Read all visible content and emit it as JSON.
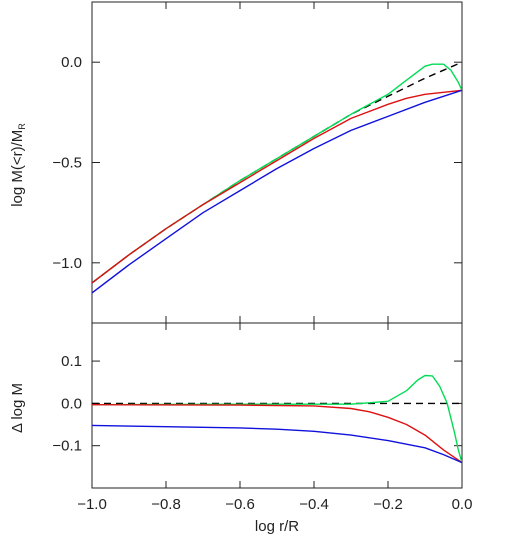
{
  "chart_data": [
    {
      "type": "line",
      "panel": "top",
      "ylabel_main": "log M(<r)/M",
      "ylabel_sub": "R",
      "xlim": [
        -1.0,
        0.0
      ],
      "ylim": [
        -1.3,
        0.3
      ],
      "yticks": [
        -1.0,
        -0.5,
        0.0
      ],
      "ytick_labels": [
        "−1.0",
        "−0.5",
        "0.0"
      ],
      "series": [
        {
          "color": "#000000",
          "dash": true,
          "x": [
            -1.0,
            -0.9,
            -0.8,
            -0.7,
            -0.6,
            -0.5,
            -0.4,
            -0.3,
            -0.2,
            -0.1,
            0.0
          ],
          "y": [
            -1.1,
            -0.96,
            -0.83,
            -0.71,
            -0.59,
            -0.48,
            -0.37,
            -0.26,
            -0.17,
            -0.08,
            0.0
          ]
        },
        {
          "color": "#00dd55",
          "dash": false,
          "x": [
            -1.0,
            -0.9,
            -0.8,
            -0.7,
            -0.6,
            -0.5,
            -0.4,
            -0.3,
            -0.2,
            -0.15,
            -0.1,
            -0.08,
            -0.05,
            -0.03,
            -0.01,
            0.0
          ],
          "y": [
            -1.1,
            -0.96,
            -0.83,
            -0.71,
            -0.59,
            -0.48,
            -0.37,
            -0.26,
            -0.16,
            -0.09,
            -0.02,
            -0.01,
            -0.01,
            -0.04,
            -0.1,
            -0.14
          ]
        },
        {
          "color": "#dd1111",
          "dash": false,
          "x": [
            -1.0,
            -0.9,
            -0.8,
            -0.7,
            -0.6,
            -0.5,
            -0.4,
            -0.3,
            -0.2,
            -0.15,
            -0.1,
            -0.05,
            0.0
          ],
          "y": [
            -1.1,
            -0.96,
            -0.83,
            -0.71,
            -0.6,
            -0.49,
            -0.38,
            -0.28,
            -0.21,
            -0.18,
            -0.16,
            -0.15,
            -0.14
          ]
        },
        {
          "color": "#1111dd",
          "dash": false,
          "x": [
            -1.0,
            -0.9,
            -0.8,
            -0.7,
            -0.6,
            -0.5,
            -0.4,
            -0.3,
            -0.2,
            -0.1,
            -0.05,
            0.0
          ],
          "y": [
            -1.15,
            -1.01,
            -0.88,
            -0.75,
            -0.64,
            -0.53,
            -0.43,
            -0.34,
            -0.27,
            -0.2,
            -0.17,
            -0.14
          ]
        }
      ]
    },
    {
      "type": "line",
      "panel": "bottom",
      "ylabel": "Δ log M",
      "xlabel": "log r/R",
      "xlim": [
        -1.0,
        0.0
      ],
      "ylim": [
        -0.2,
        0.19
      ],
      "yticks": [
        -0.1,
        0.0,
        0.1
      ],
      "ytick_labels": [
        "−0.1",
        "0.0",
        "0.1"
      ],
      "xticks": [
        -1.0,
        -0.8,
        -0.6,
        -0.4,
        -0.2,
        0.0
      ],
      "xtick_labels": [
        "−1.0",
        "−0.8",
        "−0.6",
        "−0.4",
        "−0.2",
        "0.0"
      ],
      "series": [
        {
          "color": "#000000",
          "dash": true,
          "x": [
            -1.0,
            0.0
          ],
          "y": [
            0.0,
            0.0
          ]
        },
        {
          "color": "#00dd55",
          "dash": false,
          "x": [
            -1.0,
            -0.5,
            -0.3,
            -0.2,
            -0.15,
            -0.12,
            -0.1,
            -0.08,
            -0.06,
            -0.04,
            -0.02,
            -0.01,
            0.0
          ],
          "y": [
            -0.003,
            -0.002,
            -0.002,
            0.005,
            0.03,
            0.055,
            0.066,
            0.065,
            0.04,
            0.0,
            -0.07,
            -0.11,
            -0.14
          ]
        },
        {
          "color": "#dd1111",
          "dash": false,
          "x": [
            -1.0,
            -0.6,
            -0.4,
            -0.3,
            -0.25,
            -0.2,
            -0.15,
            -0.1,
            -0.05,
            0.0
          ],
          "y": [
            -0.003,
            -0.004,
            -0.006,
            -0.012,
            -0.02,
            -0.033,
            -0.05,
            -0.075,
            -0.11,
            -0.14
          ]
        },
        {
          "color": "#1111dd",
          "dash": false,
          "x": [
            -1.0,
            -0.8,
            -0.6,
            -0.5,
            -0.4,
            -0.3,
            -0.2,
            -0.1,
            -0.05,
            0.0
          ],
          "y": [
            -0.052,
            -0.055,
            -0.058,
            -0.061,
            -0.066,
            -0.075,
            -0.088,
            -0.105,
            -0.121,
            -0.14
          ]
        }
      ]
    }
  ]
}
